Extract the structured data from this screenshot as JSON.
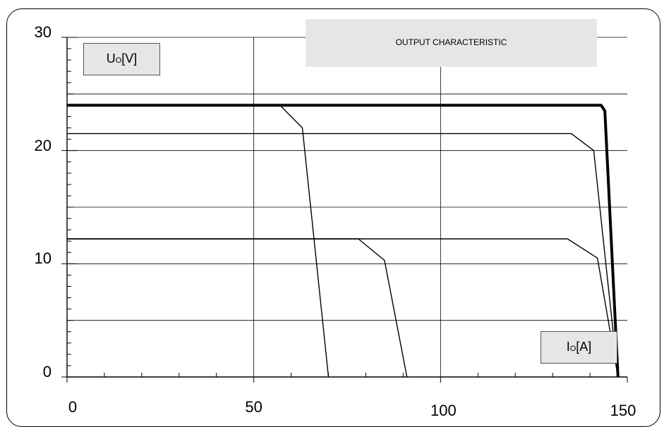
{
  "chart_data": {
    "type": "line",
    "title": "OUTPUT CHARACTERISTIC",
    "ylabel": {
      "main": "U",
      "sub": "O",
      "unit": "[V]"
    },
    "xlabel": {
      "main": "I",
      "sub": "O",
      "unit": "[A]"
    },
    "xlim": [
      0,
      150
    ],
    "ylim": [
      0,
      30
    ],
    "x_ticks": [
      "0",
      "50",
      "100",
      "150"
    ],
    "y_ticks": [
      "0",
      "10",
      "20",
      "30"
    ],
    "grid": true,
    "series": [
      {
        "style": "bold",
        "x": [
          0,
          143,
          144,
          147.5
        ],
        "y": [
          24,
          24,
          23.5,
          0
        ]
      },
      {
        "style": "thin",
        "x": [
          0,
          57,
          63,
          70
        ],
        "y": [
          24,
          24,
          22,
          0
        ]
      },
      {
        "style": "thin",
        "x": [
          0,
          135,
          141,
          147.5
        ],
        "y": [
          21.5,
          21.5,
          20,
          0
        ]
      },
      {
        "style": "thin",
        "x": [
          0,
          78,
          85,
          91
        ],
        "y": [
          12.2,
          12.2,
          10.3,
          0
        ]
      },
      {
        "style": "thin",
        "x": [
          0,
          134,
          142,
          147.5
        ],
        "y": [
          12.2,
          12.2,
          10.5,
          0
        ]
      }
    ]
  }
}
